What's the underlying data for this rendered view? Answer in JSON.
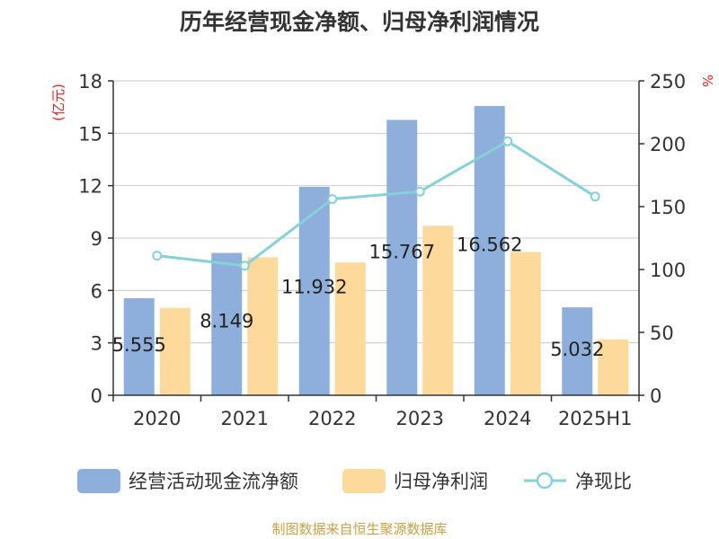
{
  "chart_data": {
    "type": "bar",
    "title": "历年经营现金净额、归母净利润情况",
    "categories": [
      "2020",
      "2021",
      "2022",
      "2023",
      "2024",
      "2025H1"
    ],
    "left_axis": {
      "label": "(亿元)",
      "ylim": [
        0,
        18
      ],
      "ticks": [
        0,
        3,
        6,
        9,
        12,
        15,
        18
      ]
    },
    "right_axis": {
      "label": "%",
      "ylim": [
        0,
        250
      ],
      "ticks": [
        0,
        50,
        100,
        150,
        200,
        250
      ]
    },
    "series": [
      {
        "name": "经营活动现金流净额",
        "type": "bar",
        "axis": "left",
        "color": "#8eaedb",
        "values": [
          5.555,
          8.149,
          11.932,
          15.767,
          16.562,
          5.032
        ],
        "labels": [
          "5.555",
          "8.149",
          "11.932",
          "15.767",
          "16.562",
          "5.032"
        ]
      },
      {
        "name": "归母净利润",
        "type": "bar",
        "axis": "left",
        "color": "#fdd99b",
        "values": [
          5.0,
          7.9,
          7.6,
          9.7,
          8.2,
          3.2
        ]
      },
      {
        "name": "净现比",
        "type": "line",
        "axis": "right",
        "color": "#86d1d8",
        "values": [
          111,
          103,
          156,
          162,
          202,
          158
        ]
      }
    ],
    "grid": true,
    "legend": "bottom"
  },
  "source": "制图数据来自恒生聚源数据库"
}
